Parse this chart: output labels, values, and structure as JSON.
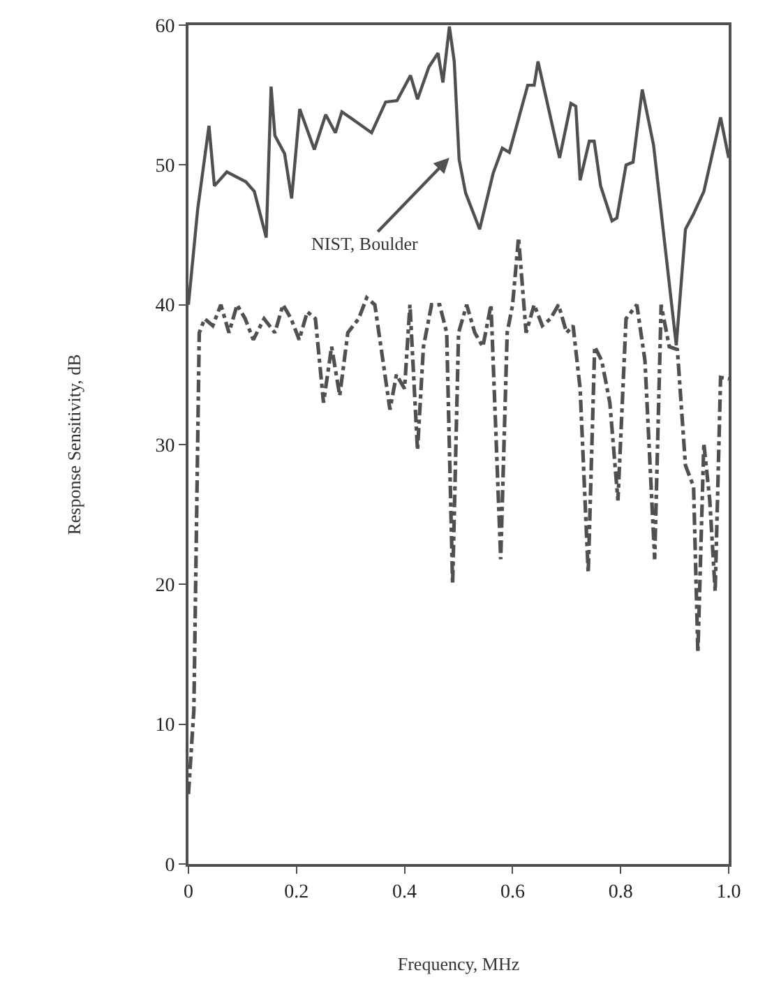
{
  "chart_data": {
    "type": "line",
    "xlabel": "Frequency, MHz",
    "ylabel": "Response Sensitivity, dB",
    "xlim": [
      0,
      1
    ],
    "xticks": [
      0,
      0.2,
      0.4,
      0.6,
      0.8,
      {
        "value": 1,
        "label": "1.0"
      }
    ],
    "ylim": [
      0,
      60
    ],
    "yticks": [
      0,
      10,
      20,
      30,
      40,
      50,
      60
    ],
    "legend": false,
    "marker": "none",
    "series": [
      {
        "name": "NIST, Boulder",
        "color": "#505050",
        "line_style": "solid",
        "x": [
          0,
          0.017,
          0.038,
          0.048,
          0.071,
          0.106,
          0.122,
          0.144,
          0.153,
          0.16,
          0.178,
          0.191,
          0.206,
          0.233,
          0.254,
          0.272,
          0.284,
          0.31,
          0.339,
          0.365,
          0.386,
          0.411,
          0.424,
          0.445,
          0.462,
          0.471,
          0.483,
          0.492,
          0.501,
          0.513,
          0.539,
          0.564,
          0.581,
          0.594,
          0.628,
          0.64,
          0.647,
          0.687,
          0.708,
          0.717,
          0.725,
          0.742,
          0.751,
          0.763,
          0.784,
          0.793,
          0.81,
          0.823,
          0.84,
          0.861,
          0.903,
          0.92,
          0.935,
          0.954,
          0.985,
          1.0
        ],
        "values": [
          40,
          46.8,
          52.8,
          48.5,
          49.5,
          48.8,
          48.1,
          44.8,
          55.6,
          52.1,
          50.8,
          47.6,
          54,
          51.1,
          53.6,
          52.3,
          53.8,
          53.1,
          52.3,
          54.5,
          54.6,
          56.4,
          54.7,
          57,
          58,
          55.9,
          59.9,
          57.4,
          50.4,
          48,
          45.4,
          49.4,
          51.2,
          50.9,
          55.7,
          55.7,
          57.4,
          50.5,
          54.4,
          54.2,
          48.9,
          51.7,
          51.7,
          48.5,
          46,
          46.2,
          50,
          50.2,
          55.4,
          51.4,
          37.1,
          45.4,
          46.5,
          48.1,
          53.4,
          50.5
        ]
      },
      {
        "color": "#505050",
        "line_style": "dashdot",
        "x": [
          0,
          0.01,
          0.02,
          0.03,
          0.045,
          0.06,
          0.075,
          0.09,
          0.105,
          0.12,
          0.14,
          0.16,
          0.175,
          0.19,
          0.205,
          0.22,
          0.235,
          0.25,
          0.265,
          0.28,
          0.295,
          0.315,
          0.33,
          0.345,
          0.36,
          0.373,
          0.385,
          0.4,
          0.41,
          0.424,
          0.435,
          0.45,
          0.465,
          0.478,
          0.489,
          0.5,
          0.515,
          0.53,
          0.545,
          0.56,
          0.578,
          0.59,
          0.6,
          0.611,
          0.625,
          0.64,
          0.655,
          0.67,
          0.685,
          0.7,
          0.712,
          0.725,
          0.74,
          0.752,
          0.765,
          0.78,
          0.795,
          0.81,
          0.83,
          0.845,
          0.863,
          0.875,
          0.89,
          0.905,
          0.92,
          0.935,
          0.943,
          0.954,
          0.965,
          0.975,
          0.985,
          1.0
        ],
        "values": [
          5,
          11,
          38,
          39,
          38.5,
          40,
          38,
          40,
          39,
          37.5,
          39,
          38,
          40,
          39,
          37.5,
          39.5,
          39,
          33,
          37,
          33.5,
          38,
          39,
          40.5,
          40,
          36,
          32.5,
          35,
          34,
          40,
          29.6,
          37,
          40,
          40,
          38,
          20,
          38,
          40,
          38,
          37,
          40,
          21.8,
          38,
          40,
          44.8,
          38,
          40,
          38.5,
          39,
          40,
          38,
          38.5,
          34,
          20.8,
          37,
          36,
          33,
          26,
          39,
          40,
          36,
          21.8,
          40,
          37,
          36.8,
          28.5,
          27,
          15.1,
          30.1,
          26,
          19.5,
          34.8,
          34.7
        ]
      }
    ]
  }
}
